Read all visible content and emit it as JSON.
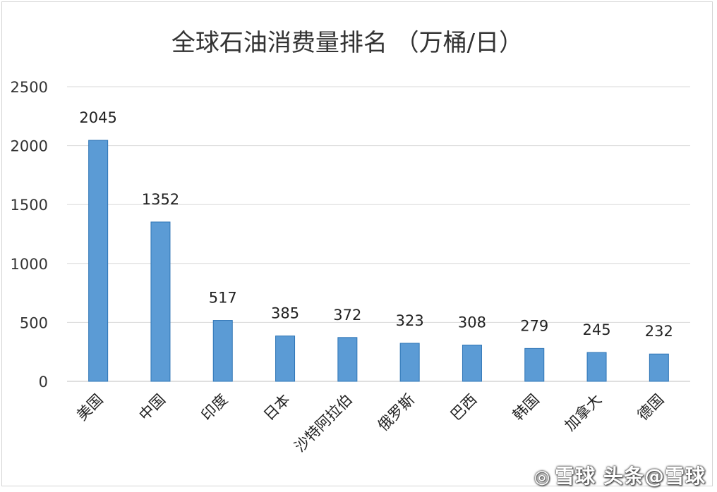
{
  "chart_data": {
    "type": "bar",
    "title": "全球石油消费量排名 （万桶/日）",
    "categories": [
      "美国",
      "中国",
      "印度",
      "日本",
      "沙特阿拉伯",
      "俄罗斯",
      "巴西",
      "韩国",
      "加拿大",
      "德国"
    ],
    "values": [
      2045,
      1352,
      517,
      385,
      372,
      323,
      308,
      279,
      245,
      232
    ],
    "yticks": [
      "0",
      "500",
      "1000",
      "1500",
      "2000",
      "2500"
    ],
    "ylim": [
      0,
      2500
    ],
    "grid": true,
    "legend": "none",
    "bar_color": "#5b9bd5",
    "bar_edge_color": "#2e75b6"
  },
  "watermark": {
    "icon": "snowball-icon",
    "text": "雪球 头条@雪球"
  }
}
